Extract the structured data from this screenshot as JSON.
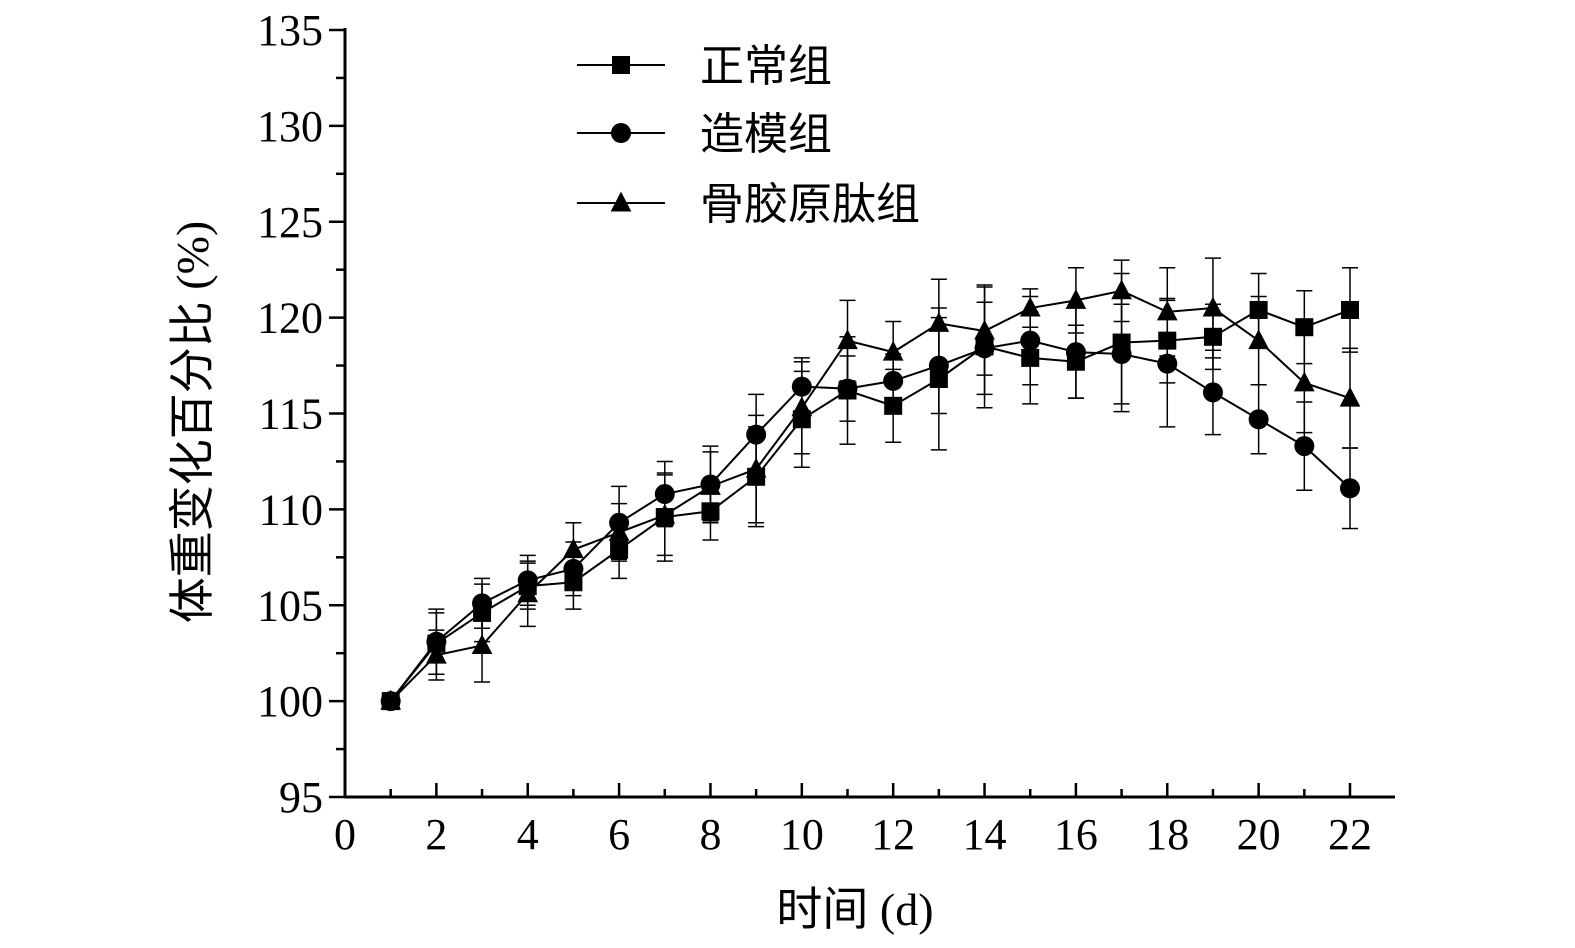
{
  "chart_data": {
    "type": "line",
    "title": "",
    "xlabel": "时间 (d)",
    "ylabel": "体重变化百分比 (%)",
    "xlim": [
      0,
      23
    ],
    "ylim": [
      95,
      135
    ],
    "xticks": [
      0,
      2,
      4,
      6,
      8,
      10,
      12,
      14,
      16,
      18,
      20,
      22
    ],
    "yticks": [
      95,
      100,
      105,
      110,
      115,
      120,
      125,
      130,
      135
    ],
    "grid": false,
    "legend_position": "top-left",
    "x": [
      1,
      2,
      3,
      4,
      5,
      6,
      7,
      8,
      9,
      10,
      11,
      12,
      13,
      14,
      15,
      16,
      17,
      18,
      19,
      20,
      21,
      22
    ],
    "series": [
      {
        "name": "正常组",
        "marker": "square",
        "color": "#000000",
        "values": [
          100.0,
          103.0,
          104.6,
          106.0,
          106.2,
          107.9,
          109.6,
          109.9,
          111.7,
          114.7,
          116.2,
          115.4,
          116.8,
          118.5,
          117.9,
          117.7,
          118.7,
          118.8,
          119.0,
          120.4,
          119.5,
          120.4
        ],
        "errors": [
          0.3,
          1.6,
          1.5,
          1.2,
          1.4,
          1.5,
          2.3,
          1.5,
          2.6,
          2.5,
          2.8,
          1.9,
          3.7,
          3.2,
          2.4,
          1.9,
          3.6,
          2.2,
          1.7,
          1.9,
          1.9,
          2.2
        ]
      },
      {
        "name": "造模组",
        "marker": "circle",
        "color": "#000000",
        "values": [
          100.0,
          103.1,
          105.1,
          106.3,
          106.9,
          109.3,
          110.8,
          111.3,
          113.9,
          116.4,
          116.3,
          116.7,
          117.5,
          118.4,
          118.8,
          118.2,
          118.1,
          117.6,
          116.1,
          114.7,
          113.3,
          111.1
        ]
      },
      {
        "name": "骨胶原肽组",
        "marker": "triangle",
        "color": "#000000",
        "values": [
          100.0,
          102.4,
          102.9,
          105.6,
          107.9,
          108.8,
          109.7,
          111.2,
          112.1,
          115.3,
          118.8,
          118.2,
          119.7,
          119.3,
          120.5,
          120.9,
          121.4,
          120.3,
          120.5,
          118.8,
          116.6,
          115.8
        ]
      }
    ]
  }
}
